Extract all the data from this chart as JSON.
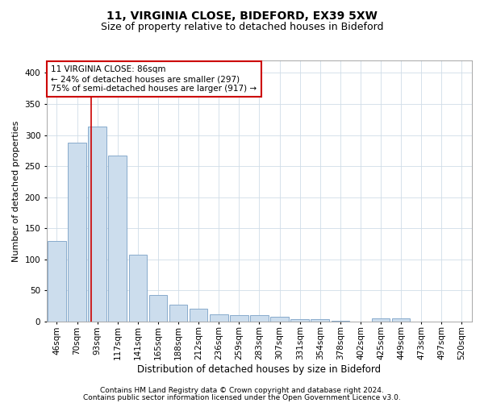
{
  "title1": "11, VIRGINIA CLOSE, BIDEFORD, EX39 5XW",
  "title2": "Size of property relative to detached houses in Bideford",
  "xlabel": "Distribution of detached houses by size in Bideford",
  "ylabel": "Number of detached properties",
  "footnote1": "Contains HM Land Registry data © Crown copyright and database right 2024.",
  "footnote2": "Contains public sector information licensed under the Open Government Licence v3.0.",
  "bin_labels": [
    "46sqm",
    "70sqm",
    "93sqm",
    "117sqm",
    "141sqm",
    "165sqm",
    "188sqm",
    "212sqm",
    "236sqm",
    "259sqm",
    "283sqm",
    "307sqm",
    "331sqm",
    "354sqm",
    "378sqm",
    "402sqm",
    "425sqm",
    "449sqm",
    "473sqm",
    "497sqm",
    "520sqm"
  ],
  "bar_values": [
    130,
    288,
    313,
    267,
    107,
    42,
    27,
    21,
    11,
    10,
    10,
    8,
    4,
    3,
    1,
    0,
    5,
    5,
    0,
    0,
    0
  ],
  "bar_color": "#ccdded",
  "bar_edge_color": "#88aacc",
  "grid_color": "#d0dde8",
  "vline_color": "#cc0000",
  "annotation_line1": "11 VIRGINIA CLOSE: 86sqm",
  "annotation_line2": "← 24% of detached houses are smaller (297)",
  "annotation_line3": "75% of semi-detached houses are larger (917) →",
  "annotation_box_color": "#ffffff",
  "annotation_box_edge": "#cc0000",
  "ylim": [
    0,
    420
  ],
  "yticks": [
    0,
    50,
    100,
    150,
    200,
    250,
    300,
    350,
    400
  ],
  "vline_x": 1.7,
  "title1_fontsize": 10,
  "title2_fontsize": 9,
  "xlabel_fontsize": 8.5,
  "ylabel_fontsize": 8,
  "tick_fontsize": 7.5,
  "annotation_fontsize": 7.5,
  "footnote_fontsize": 6.5
}
